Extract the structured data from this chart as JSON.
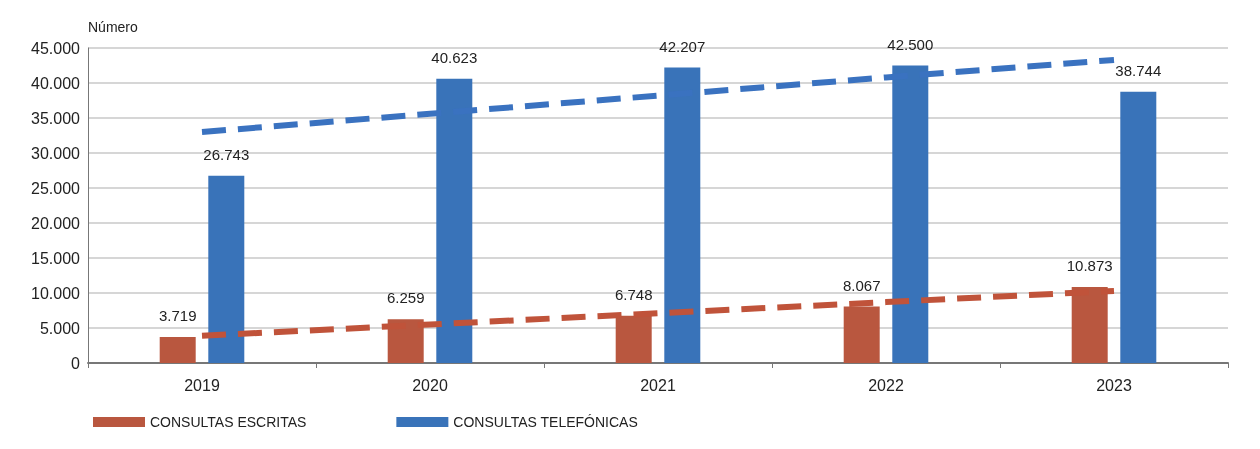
{
  "chart_data": {
    "type": "bar",
    "ylabel": "Número",
    "categories": [
      "2019",
      "2020",
      "2021",
      "2022",
      "2023"
    ],
    "series": [
      {
        "name": "CONSULTAS ESCRITAS",
        "color": "#b9573f",
        "values": [
          3719,
          6259,
          6748,
          8067,
          10873
        ],
        "value_labels": [
          "3.719",
          "6.259",
          "6.748",
          "8.067",
          "10.873"
        ]
      },
      {
        "name": "CONSULTAS TELEFÓNICAS",
        "color": "#3973b9",
        "values": [
          26743,
          40623,
          42207,
          42500,
          38744
        ],
        "value_labels": [
          "26.743",
          "40.623",
          "42.207",
          "42.500",
          "38.744"
        ]
      },
      {
        "type": "line",
        "color": "#c0533a",
        "line_style": "dashed",
        "marker": "none",
        "values": [
          3900,
          5500,
          7100,
          8700,
          10300
        ]
      },
      {
        "type": "line",
        "color": "#3a72c0",
        "line_style": "dashed",
        "marker": "none",
        "values": [
          33000,
          35600,
          38200,
          40800,
          43300
        ]
      }
    ],
    "ylim": [
      0,
      45000
    ],
    "yticks": [
      {
        "value": 0,
        "label": "0"
      },
      {
        "value": 5000,
        "label": "5.000"
      },
      {
        "value": 10000,
        "label": "10.000"
      },
      {
        "value": 15000,
        "label": "15.000"
      },
      {
        "value": 20000,
        "label": "20.000"
      },
      {
        "value": 25000,
        "label": "25.000"
      },
      {
        "value": 30000,
        "label": "30.000"
      },
      {
        "value": 35000,
        "label": "35.000"
      },
      {
        "value": 40000,
        "label": "40.000"
      },
      {
        "value": 45000,
        "label": "45.000"
      }
    ],
    "grid": "y",
    "legend": "bottom left"
  }
}
